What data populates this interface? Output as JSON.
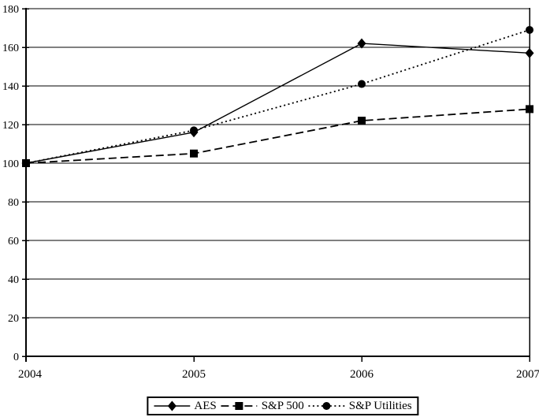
{
  "page": {
    "background": "#ffffff",
    "foreground": "#000000"
  },
  "chart_data": {
    "type": "line",
    "title": "",
    "xlabel": "",
    "ylabel": "",
    "x_categories": [
      "2004",
      "2005",
      "2006",
      "2007"
    ],
    "y_ticks": [
      0,
      20,
      40,
      60,
      80,
      100,
      120,
      140,
      160,
      180
    ],
    "ylim": [
      0,
      180
    ],
    "grid": "horizontal",
    "legend_position": "bottom-center-boxed",
    "axis_color": "#000000",
    "series": [
      {
        "name": "AES",
        "line_style": "solid",
        "marker": "diamond",
        "values": [
          100,
          116,
          162,
          157
        ]
      },
      {
        "name": "S&P 500",
        "line_style": "dashed",
        "marker": "square",
        "values": [
          100,
          105,
          122,
          128
        ]
      },
      {
        "name": "S&P Utilities",
        "line_style": "dotted",
        "marker": "circle",
        "values": [
          100,
          117,
          141,
          169
        ]
      }
    ]
  }
}
